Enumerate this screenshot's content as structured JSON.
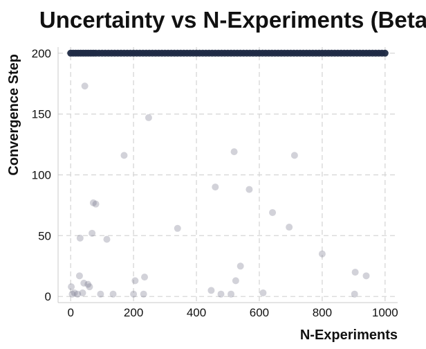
{
  "chart_data": {
    "type": "scatter",
    "title": "Uncertainty vs N-Experiments (Beta)",
    "xlabel": "N-Experiments",
    "ylabel": "Convergence Step",
    "xlim": [
      -40,
      1040
    ],
    "ylim": [
      -5,
      205
    ],
    "xticks": [
      0,
      200,
      400,
      600,
      800,
      1000
    ],
    "yticks": [
      0,
      50,
      100,
      150,
      200
    ],
    "grid": true,
    "colors": {
      "saturated": "#1f2a44",
      "scattered": "#6a6a80"
    },
    "series": [
      {
        "x": [
          0,
          8,
          16,
          24,
          32,
          40,
          48,
          56,
          64,
          72,
          80,
          90,
          100,
          110,
          120,
          130,
          140,
          150,
          160,
          170,
          180,
          190,
          200,
          210,
          220,
          230,
          240,
          250,
          260,
          270,
          280,
          290,
          300,
          310,
          320,
          330,
          340,
          350,
          360,
          370,
          380,
          390,
          400,
          410,
          420,
          430,
          440,
          450,
          460,
          470,
          480,
          490,
          500,
          510,
          520,
          530,
          540,
          550,
          560,
          570,
          580,
          590,
          600,
          610,
          620,
          630,
          640,
          650,
          660,
          670,
          680,
          690,
          700,
          710,
          720,
          730,
          740,
          750,
          760,
          770,
          780,
          790,
          800,
          810,
          820,
          830,
          840,
          850,
          860,
          870,
          880,
          890,
          900,
          910,
          920,
          930,
          940,
          950,
          960,
          970,
          980,
          990,
          1000
        ],
        "y": [
          200,
          200,
          200,
          200,
          200,
          200,
          200,
          200,
          200,
          200,
          200,
          200,
          200,
          200,
          200,
          200,
          200,
          200,
          200,
          200,
          200,
          200,
          200,
          200,
          200,
          200,
          200,
          200,
          200,
          200,
          200,
          200,
          200,
          200,
          200,
          200,
          200,
          200,
          200,
          200,
          200,
          200,
          200,
          200,
          200,
          200,
          200,
          200,
          200,
          200,
          200,
          200,
          200,
          200,
          200,
          200,
          200,
          200,
          200,
          200,
          200,
          200,
          200,
          200,
          200,
          200,
          200,
          200,
          200,
          200,
          200,
          200,
          200,
          200,
          200,
          200,
          200,
          200,
          200,
          200,
          200,
          200,
          200,
          200,
          200,
          200,
          200,
          200,
          200,
          200,
          200,
          200,
          200,
          200,
          200,
          200,
          200,
          200,
          200,
          200,
          200,
          200,
          200
        ],
        "opacity": 0.95
      },
      {
        "x": [
          2,
          5,
          12,
          22,
          28,
          30,
          38,
          42,
          45,
          55,
          60,
          68,
          72,
          80,
          95,
          115,
          135,
          170,
          200,
          205,
          232,
          235,
          248,
          340,
          447,
          460,
          478,
          510,
          520,
          525,
          540,
          568,
          642,
          612,
          695,
          712,
          800,
          903,
          905,
          940
        ],
        "y": [
          8,
          2,
          3,
          2,
          17,
          48,
          3,
          11,
          173,
          10,
          8,
          52,
          77,
          76,
          2,
          47,
          2,
          116,
          2,
          13,
          2,
          16,
          147,
          56,
          5,
          90,
          2,
          2,
          119,
          13,
          25,
          88,
          69,
          3,
          57,
          116,
          35,
          2,
          20,
          17
        ],
        "opacity": 0.3
      }
    ]
  }
}
